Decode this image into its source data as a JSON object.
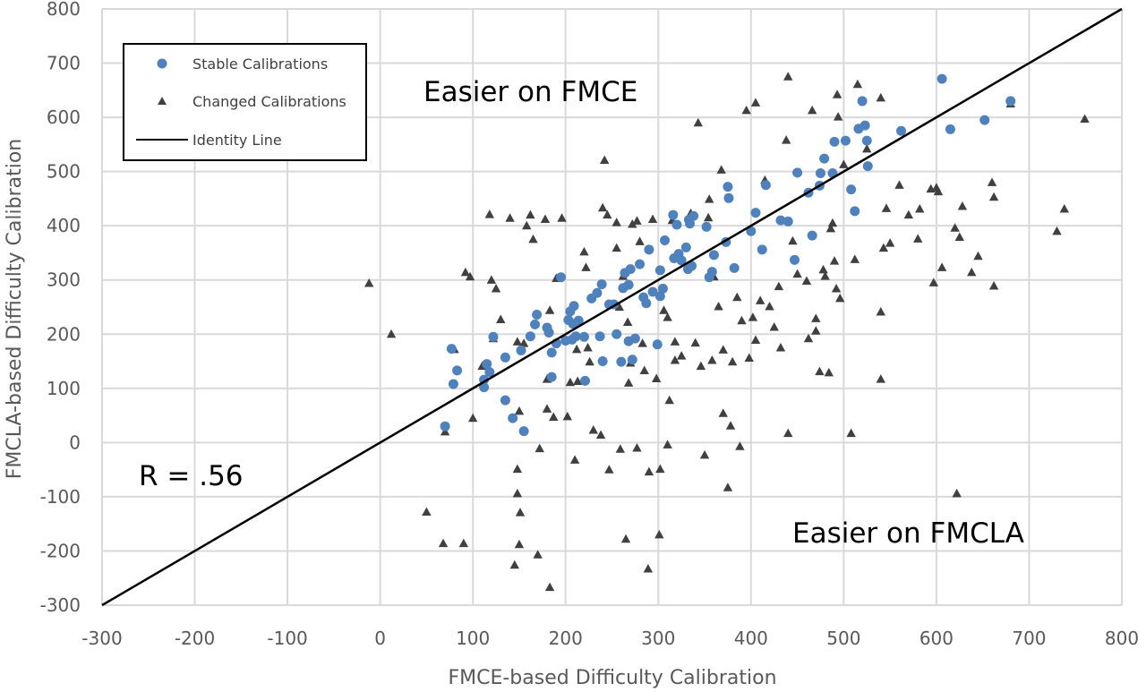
{
  "chart_data": {
    "type": "scatter",
    "title": "",
    "xlabel": "FMCE-based Difficulty Calibration",
    "ylabel": "FMCLA-based Difficulty Calibration",
    "xlim": [
      -300,
      800
    ],
    "ylim": [
      -300,
      800
    ],
    "xticks": [
      "-300",
      "-200",
      "-100",
      "0",
      "100",
      "200",
      "300",
      "400",
      "500",
      "600",
      "700",
      "800"
    ],
    "yticks": [
      "800",
      "700",
      "600",
      "500",
      "400",
      "300",
      "200",
      "100",
      "0",
      "-100",
      "-200",
      "-300"
    ],
    "grid": true,
    "legend_position": "top-left",
    "annotations": {
      "easier_fmce": "Easier on FMCE",
      "easier_fmcla": "Easier on FMCLA",
      "r_value": "R = .56"
    },
    "series": [
      {
        "name": "Stable Calibrations",
        "marker": "circle",
        "color": "#4f81bd",
        "points": [
          [
            70,
            30
          ],
          [
            77,
            173
          ],
          [
            79,
            108
          ],
          [
            83,
            133
          ],
          [
            112,
            116
          ],
          [
            112,
            102
          ],
          [
            115,
            145
          ],
          [
            118,
            130
          ],
          [
            122,
            195
          ],
          [
            135,
            157
          ],
          [
            135,
            78
          ],
          [
            143,
            45
          ],
          [
            152,
            170
          ],
          [
            155,
            21
          ],
          [
            162,
            196
          ],
          [
            167,
            218
          ],
          [
            169,
            236
          ],
          [
            180,
            212
          ],
          [
            182,
            203
          ],
          [
            185,
            121
          ],
          [
            185,
            166
          ],
          [
            190,
            183
          ],
          [
            195,
            305
          ],
          [
            200,
            188
          ],
          [
            203,
            226
          ],
          [
            205,
            242
          ],
          [
            207,
            190
          ],
          [
            208,
            219
          ],
          [
            209,
            252
          ],
          [
            211,
            196
          ],
          [
            214,
            225
          ],
          [
            220,
            195
          ],
          [
            221,
            114
          ],
          [
            228,
            266
          ],
          [
            234,
            276
          ],
          [
            237,
            196
          ],
          [
            239,
            292
          ],
          [
            240,
            150
          ],
          [
            247,
            255
          ],
          [
            252,
            255
          ],
          [
            255,
            200
          ],
          [
            260,
            149
          ],
          [
            262,
            285
          ],
          [
            264,
            313
          ],
          [
            268,
            291
          ],
          [
            268,
            187
          ],
          [
            270,
            320
          ],
          [
            272,
            153
          ],
          [
            275,
            192
          ],
          [
            280,
            329
          ],
          [
            284,
            268
          ],
          [
            287,
            257
          ],
          [
            290,
            356
          ],
          [
            294,
            278
          ],
          [
            299,
            181
          ],
          [
            302,
            318
          ],
          [
            302,
            270
          ],
          [
            305,
            284
          ],
          [
            307,
            373
          ],
          [
            316,
            420
          ],
          [
            317,
            340
          ],
          [
            320,
            402
          ],
          [
            322,
            348
          ],
          [
            325,
            336
          ],
          [
            330,
            360
          ],
          [
            332,
            320
          ],
          [
            333,
            411
          ],
          [
            334,
            404
          ],
          [
            336,
            326
          ],
          [
            338,
            418
          ],
          [
            352,
            398
          ],
          [
            355,
            305
          ],
          [
            358,
            315
          ],
          [
            360,
            346
          ],
          [
            373,
            370
          ],
          [
            375,
            472
          ],
          [
            376,
            451
          ],
          [
            382,
            322
          ],
          [
            400,
            390
          ],
          [
            405,
            424
          ],
          [
            412,
            356
          ],
          [
            416,
            475
          ],
          [
            432,
            410
          ],
          [
            440,
            408
          ],
          [
            447,
            337
          ],
          [
            450,
            498
          ],
          [
            462,
            461
          ],
          [
            466,
            382
          ],
          [
            474,
            474
          ],
          [
            475,
            497
          ],
          [
            479,
            524
          ],
          [
            488,
            497
          ],
          [
            490,
            555
          ],
          [
            502,
            557
          ],
          [
            508,
            467
          ],
          [
            512,
            427
          ],
          [
            516,
            579
          ],
          [
            520,
            630
          ],
          [
            523,
            585
          ],
          [
            525,
            557
          ],
          [
            526,
            510
          ],
          [
            562,
            575
          ],
          [
            606,
            671
          ],
          [
            615,
            578
          ],
          [
            652,
            595
          ],
          [
            680,
            630
          ]
        ]
      },
      {
        "name": "Changed Calibrations",
        "marker": "triangle",
        "color": "#404040",
        "points": [
          [
            -12,
            293
          ],
          [
            12,
            199
          ],
          [
            50,
            -129
          ],
          [
            68,
            -187
          ],
          [
            70,
            19
          ],
          [
            80,
            171
          ],
          [
            90,
            -187
          ],
          [
            92,
            313
          ],
          [
            97,
            305
          ],
          [
            100,
            44
          ],
          [
            110,
            140
          ],
          [
            118,
            420
          ],
          [
            120,
            299
          ],
          [
            122,
            191
          ],
          [
            125,
            283
          ],
          [
            130,
            226
          ],
          [
            140,
            413
          ],
          [
            148,
            185
          ],
          [
            150,
            -189
          ],
          [
            151,
            -130
          ],
          [
            145,
            -227
          ],
          [
            148,
            -95
          ],
          [
            148,
            -50
          ],
          [
            150,
            57
          ],
          [
            155,
            182
          ],
          [
            158,
            399
          ],
          [
            162,
            419
          ],
          [
            165,
            374
          ],
          [
            170,
            -208
          ],
          [
            172,
            -12
          ],
          [
            178,
            411
          ],
          [
            180,
            116
          ],
          [
            180,
            61
          ],
          [
            182,
            210
          ],
          [
            183,
            243
          ],
          [
            183,
            -268
          ],
          [
            187,
            46
          ],
          [
            190,
            302
          ],
          [
            196,
            413
          ],
          [
            202,
            47
          ],
          [
            210,
            -33
          ],
          [
            212,
            171
          ],
          [
            213,
            112
          ],
          [
            220,
            351
          ],
          [
            222,
            322
          ],
          [
            224,
            174
          ],
          [
            226,
            148
          ],
          [
            230,
            22
          ],
          [
            238,
            13
          ],
          [
            240,
            432
          ],
          [
            242,
            520
          ],
          [
            245,
            419
          ],
          [
            247,
            -51
          ],
          [
            255,
            405
          ],
          [
            255,
            358
          ],
          [
            258,
            249
          ],
          [
            259,
            -13
          ],
          [
            262,
            306
          ],
          [
            265,
            -179
          ],
          [
            267,
            221
          ],
          [
            268,
            109
          ],
          [
            270,
            146
          ],
          [
            272,
            402
          ],
          [
            277,
            -11
          ],
          [
            277,
            408
          ],
          [
            280,
            370
          ],
          [
            283,
            182
          ],
          [
            285,
            132
          ],
          [
            289,
            -234
          ],
          [
            290,
            -55
          ],
          [
            294,
            411
          ],
          [
            298,
            117
          ],
          [
            301,
            -171
          ],
          [
            302,
            -50
          ],
          [
            306,
            243
          ],
          [
            310,
            -5
          ],
          [
            312,
            77
          ],
          [
            315,
            409
          ],
          [
            318,
            151
          ],
          [
            318,
            185
          ],
          [
            325,
            159
          ],
          [
            335,
            422
          ],
          [
            340,
            183
          ],
          [
            343,
            589
          ],
          [
            346,
            140
          ],
          [
            350,
            -24
          ],
          [
            354,
            414
          ],
          [
            355,
            448
          ],
          [
            358,
            151
          ],
          [
            360,
            305
          ],
          [
            365,
            250
          ],
          [
            368,
            502
          ],
          [
            370,
            53
          ],
          [
            375,
            -84
          ],
          [
            378,
            30
          ],
          [
            380,
            148
          ],
          [
            385,
            267
          ],
          [
            388,
            -8
          ],
          [
            390,
            224
          ],
          [
            395,
            612
          ],
          [
            398,
            155
          ],
          [
            402,
            230
          ],
          [
            405,
            188
          ],
          [
            405,
            626
          ],
          [
            410,
            261
          ],
          [
            415,
            483
          ],
          [
            420,
            250
          ],
          [
            425,
            212
          ],
          [
            430,
            287
          ],
          [
            432,
            174
          ],
          [
            438,
            557
          ],
          [
            440,
            674
          ],
          [
            440,
            16
          ],
          [
            445,
            371
          ],
          [
            450,
            310
          ],
          [
            460,
            297
          ],
          [
            462,
            191
          ],
          [
            466,
            612
          ],
          [
            470,
            228
          ],
          [
            474,
            130
          ],
          [
            478,
            318
          ],
          [
            480,
            306
          ],
          [
            484,
            128
          ],
          [
            486,
            394
          ],
          [
            488,
            404
          ],
          [
            490,
            334
          ],
          [
            492,
            283
          ],
          [
            493,
            641
          ],
          [
            494,
            600
          ],
          [
            496,
            265
          ],
          [
            500,
            512
          ],
          [
            508,
            16
          ],
          [
            512,
            337
          ],
          [
            515,
            660
          ],
          [
            525,
            541
          ],
          [
            540,
            635
          ],
          [
            540,
            116
          ],
          [
            543,
            358
          ],
          [
            546,
            431
          ],
          [
            550,
            367
          ],
          [
            560,
            474
          ],
          [
            570,
            419
          ],
          [
            580,
            375
          ],
          [
            582,
            430
          ],
          [
            594,
            467
          ],
          [
            597,
            294
          ],
          [
            600,
            469
          ],
          [
            602,
            462
          ],
          [
            606,
            322
          ],
          [
            620,
            395
          ],
          [
            622,
            -95
          ],
          [
            625,
            378
          ],
          [
            628,
            435
          ],
          [
            638,
            313
          ],
          [
            645,
            343
          ],
          [
            660,
            479
          ],
          [
            662,
            452
          ],
          [
            662,
            288
          ],
          [
            680,
            624
          ],
          [
            730,
            389
          ],
          [
            738,
            430
          ],
          [
            760,
            596
          ],
          [
            540,
            240
          ],
          [
            470,
            205
          ],
          [
            370,
            170
          ],
          [
            310,
            230
          ],
          [
            205,
            110
          ]
        ]
      },
      {
        "name": "Identity Line",
        "marker": "line",
        "color": "#000000",
        "points": [
          [
            -300,
            -300
          ],
          [
            800,
            800
          ]
        ]
      }
    ]
  }
}
